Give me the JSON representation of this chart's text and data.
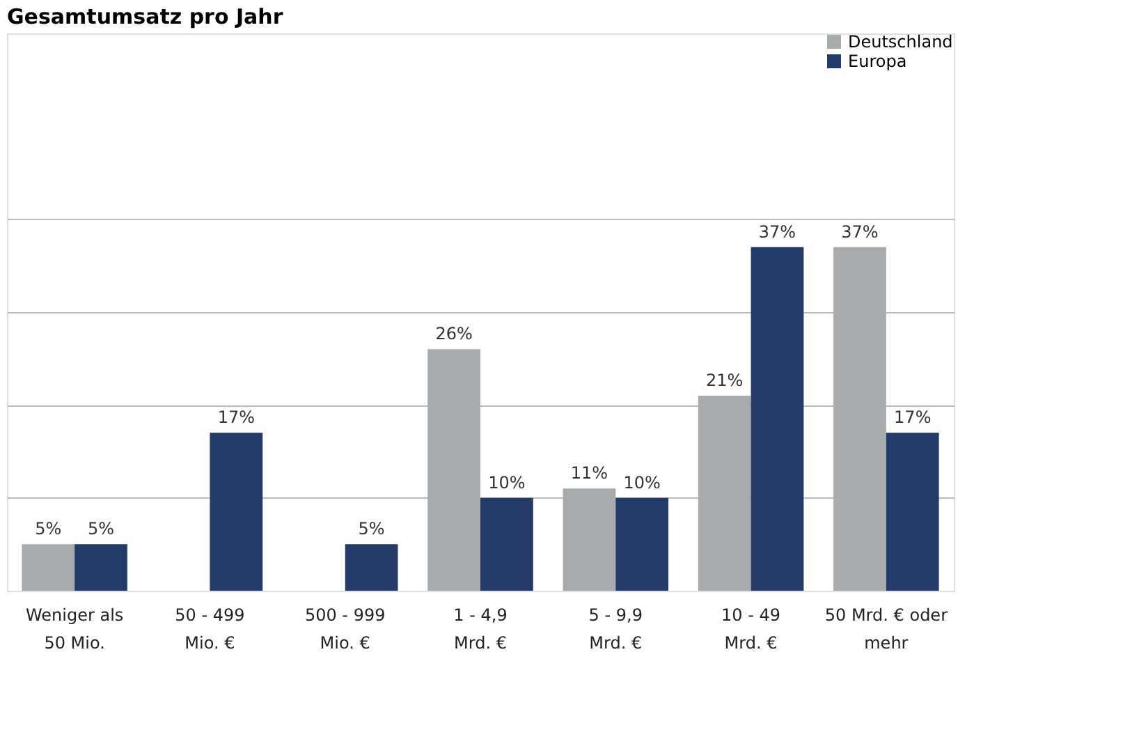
{
  "chart_data": {
    "type": "bar",
    "title": "Gesamtumsatz pro Jahr",
    "categories": [
      "Weniger als\n50 Mio.",
      "50 - 499\nMio. €",
      "500 - 999\nMio. €",
      "1 - 4,9\nMrd. €",
      "5 - 9,9\nMrd. €",
      "10 - 49\nMrd. €",
      "50 Mrd. € oder\nmehr"
    ],
    "series": [
      {
        "name": "Deutschland",
        "color": "#a7abae",
        "values": [
          5,
          null,
          null,
          26,
          11,
          21,
          37
        ],
        "value_labels": [
          "5%",
          null,
          null,
          "26%",
          "11%",
          "21%",
          "37%"
        ]
      },
      {
        "name": "Europa",
        "color": "#243a69",
        "values": [
          5,
          17,
          5,
          10,
          10,
          37,
          17
        ],
        "value_labels": [
          "5%",
          "17%",
          "5%",
          "10%",
          "10%",
          "37%",
          "17%"
        ]
      }
    ],
    "ylim": [
      0,
      60
    ],
    "yticks": [
      {
        "value": 10,
        "label": null
      },
      {
        "value": 20,
        "label": null
      },
      {
        "value": 30,
        "label": null
      },
      {
        "value": 40,
        "label": null
      }
    ],
    "grid": "y",
    "legend": "top right",
    "tick_labels": "x"
  }
}
